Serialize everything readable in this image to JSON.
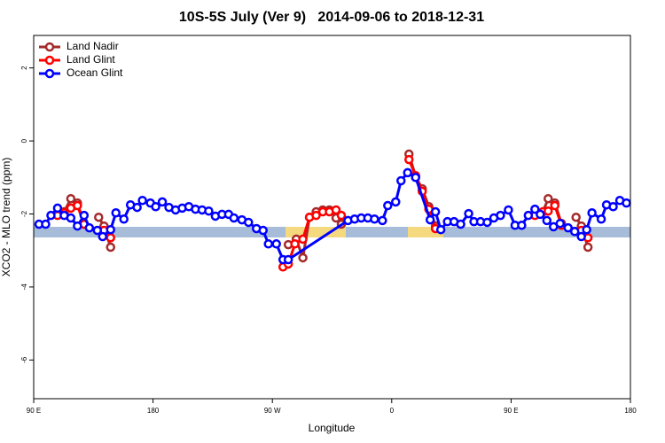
{
  "chart_data": {
    "type": "line",
    "title": "10S-5S July (Ver 9)   2014-09-06 to 2018-12-31",
    "x_label": "Longitude",
    "y_label": "XCO2 - MLO trend (ppm)",
    "xlim": [
      90,
      540
    ],
    "ylim": [
      -7.06,
      2.89
    ],
    "xticks": [
      {
        "value": 90,
        "label": "90 E"
      },
      {
        "value": 180,
        "label": "180"
      },
      {
        "value": 270,
        "label": "90 W"
      },
      {
        "value": 360,
        "label": "0"
      },
      {
        "value": 450,
        "label": "90 E"
      },
      {
        "value": 540,
        "label": "180"
      }
    ],
    "yticks": [
      2,
      0,
      -2,
      -4,
      -6
    ],
    "legend": "top-left",
    "series": [
      {
        "name": "Land Nadir",
        "color": "#a52a2a",
        "x": [
          113,
          118,
          123,
          128,
          null,
          139,
          143,
          148,
          null,
          282,
          288,
          293,
          298,
          303,
          308,
          313,
          318,
          322,
          null,
          373,
          378,
          383,
          388,
          393,
          null,
          474,
          478,
          483,
          488,
          null,
          499,
          503,
          508
        ],
        "values": [
          -1.94,
          -1.58,
          -1.7,
          -2.26,
          null,
          -2.09,
          -2.33,
          -2.91,
          null,
          -2.84,
          -2.69,
          -3.2,
          -2.09,
          -1.94,
          -1.89,
          -1.89,
          -2.11,
          -2.28,
          null,
          -0.36,
          -0.97,
          -1.31,
          -1.8,
          -2.33,
          null,
          -1.94,
          -1.58,
          -1.7,
          -2.26,
          null,
          -2.09,
          -2.33,
          -2.91
        ]
      },
      {
        "name": "Land Glint",
        "color": "#ff0000",
        "x": [
          108,
          113,
          118,
          123,
          128,
          null,
          143,
          148,
          null,
          278,
          282,
          287,
          293,
          298,
          303,
          308,
          313,
          318,
          322,
          null,
          373,
          378,
          383,
          388,
          393,
          null,
          468,
          474,
          478,
          483,
          488,
          null,
          503,
          508
        ],
        "values": [
          -2.04,
          -1.97,
          -1.84,
          -1.77,
          -2.28,
          null,
          -2.45,
          -2.65,
          null,
          -3.45,
          -3.37,
          -2.82,
          -2.69,
          -2.09,
          -2.04,
          -1.94,
          -1.94,
          -1.89,
          -2.04,
          null,
          -0.51,
          -0.95,
          -1.38,
          -1.87,
          -2.4,
          null,
          -2.04,
          -1.94,
          -1.92,
          -1.77,
          -2.31,
          null,
          -2.45,
          -2.65
        ]
      },
      {
        "name": "Ocean Glint",
        "color": "#0000ff",
        "x": [
          94,
          99,
          103,
          108,
          113,
          118,
          123,
          128,
          132,
          138,
          142,
          148,
          152,
          158,
          163,
          168,
          172,
          178,
          182,
          187,
          192,
          197,
          202,
          207,
          212,
          217,
          222,
          227,
          232,
          237,
          241,
          247,
          252,
          258,
          263,
          267,
          273,
          278,
          282,
          327,
          332,
          337,
          342,
          347,
          353,
          357,
          363,
          367,
          372,
          378,
          389,
          393,
          397,
          402,
          407,
          412,
          418,
          422,
          427,
          432,
          437,
          442,
          448,
          453,
          458,
          463,
          468,
          472,
          477,
          482,
          487,
          493,
          498,
          503,
          507,
          511,
          518,
          522,
          527,
          532,
          537
        ],
        "values": [
          -2.28,
          -2.28,
          -2.04,
          -1.84,
          -2.04,
          -2.11,
          -2.33,
          -2.04,
          -2.38,
          -2.45,
          -2.62,
          -2.43,
          -1.97,
          -2.14,
          -1.75,
          -1.82,
          -1.63,
          -1.7,
          -1.8,
          -1.67,
          -1.82,
          -1.89,
          -1.84,
          -1.8,
          -1.87,
          -1.89,
          -1.92,
          -2.06,
          -2.01,
          -2.01,
          -2.11,
          -2.16,
          -2.23,
          -2.4,
          -2.45,
          -2.82,
          -2.82,
          -3.25,
          -3.25,
          -2.18,
          -2.14,
          -2.11,
          -2.11,
          -2.14,
          -2.18,
          -1.77,
          -1.67,
          -1.09,
          -0.87,
          -1.0,
          -2.16,
          -1.94,
          -2.43,
          -2.21,
          -2.21,
          -2.28,
          -1.99,
          -2.21,
          -2.21,
          -2.23,
          -2.11,
          -2.04,
          -1.89,
          -2.31,
          -2.31,
          -2.04,
          -1.87,
          -2.01,
          -2.18,
          -2.35,
          -2.26,
          -2.38,
          -2.48,
          -2.62,
          -2.43,
          -1.97,
          -2.14,
          -1.75,
          -1.8,
          -1.63,
          -1.7
        ]
      }
    ]
  }
}
